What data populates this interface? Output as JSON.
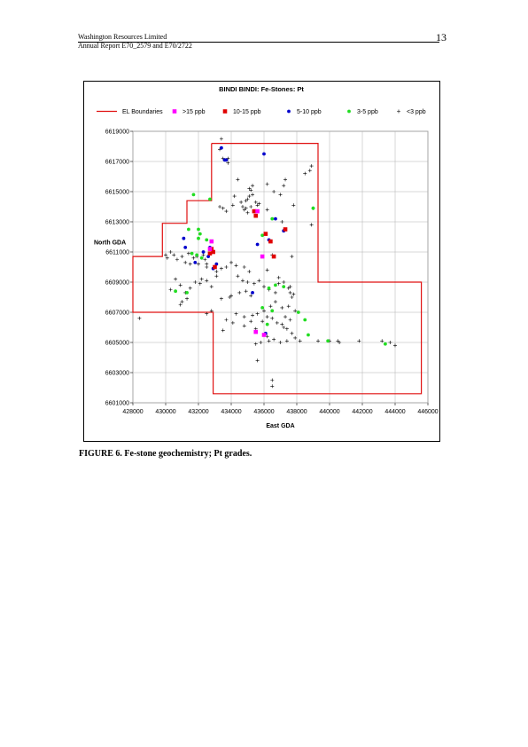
{
  "header": {
    "company": "Washington Resources Limited",
    "report": "Annual Report E70_2579 and E70/2722",
    "page_number": "13"
  },
  "caption": "FIGURE 6.  Fe-stone geochemistry; Pt grades.",
  "colors": {
    "boundary": "#e01010",
    "gt15": "#ff00ff",
    "10_15": "#e00000",
    "5_10": "#0000cc",
    "3_5": "#22dd22",
    "lt3": "#000000",
    "grid": "#b0b0b0"
  },
  "chart_data": {
    "type": "scatter",
    "title": "BINDI BINDI: Fe-Stones: Pt",
    "xlabel": "East GDA",
    "ylabel": "North GDA",
    "xlim": [
      428000,
      446000
    ],
    "ylim": [
      6601000,
      6619000
    ],
    "xticks": [
      "428000",
      "430000",
      "432000",
      "434000",
      "436000",
      "438000",
      "440000",
      "442000",
      "444000",
      "446000"
    ],
    "yticks": [
      "6601000",
      "6603000",
      "6605000",
      "6607000",
      "6609000",
      "6611000",
      "6613000",
      "6615000",
      "6617000",
      "6619000"
    ],
    "grid": true,
    "legend_position": "top",
    "legend": [
      "EL Boundaries",
      ">15 ppb",
      "10-15 ppb",
      "5-10 ppb",
      "3-5 ppb",
      "<3 ppb"
    ],
    "boundary": [
      [
        432800,
        6618200
      ],
      [
        439300,
        6618200
      ],
      [
        439300,
        6609000
      ],
      [
        445600,
        6609000
      ],
      [
        445600,
        6601600
      ],
      [
        432900,
        6601600
      ],
      [
        432900,
        6607000
      ],
      [
        428000,
        6607000
      ],
      [
        428000,
        6610700
      ],
      [
        429800,
        6610700
      ],
      [
        429800,
        6612900
      ],
      [
        431300,
        6612900
      ],
      [
        431300,
        6614400
      ],
      [
        432800,
        6614400
      ],
      [
        432800,
        6618200
      ]
    ],
    "series": [
      {
        "name": ">15 ppb",
        "marker": "square",
        "points": [
          [
            432800,
            6611700
          ],
          [
            435900,
            6610700
          ],
          [
            435600,
            6613700
          ],
          [
            436000,
            6605500
          ],
          [
            435500,
            6605700
          ],
          [
            432700,
            6611200
          ]
        ]
      },
      {
        "name": "10-15 ppb",
        "marker": "square",
        "points": [
          [
            432800,
            6611200
          ],
          [
            432700,
            6610900
          ],
          [
            433000,
            6610000
          ],
          [
            435500,
            6613400
          ],
          [
            436100,
            6612200
          ],
          [
            436400,
            6611700
          ],
          [
            436600,
            6610700
          ],
          [
            437300,
            6612500
          ],
          [
            435400,
            6613700
          ],
          [
            432900,
            6611000
          ]
        ]
      },
      {
        "name": "5-10 ppb",
        "marker": "circle",
        "points": [
          [
            433400,
            6617900
          ],
          [
            433600,
            6617100
          ],
          [
            433700,
            6617100
          ],
          [
            436000,
            6617500
          ],
          [
            435600,
            6611500
          ],
          [
            436300,
            6611800
          ],
          [
            437200,
            6612400
          ],
          [
            431100,
            6611900
          ],
          [
            431200,
            6611300
          ],
          [
            431800,
            6610300
          ],
          [
            432300,
            6611000
          ],
          [
            432600,
            6610700
          ],
          [
            433100,
            6610200
          ],
          [
            432900,
            6609900
          ],
          [
            435300,
            6608300
          ],
          [
            436100,
            6605600
          ],
          [
            432700,
            6611300
          ],
          [
            436700,
            6613200
          ]
        ]
      },
      {
        "name": "3-5 ppb",
        "marker": "circle",
        "points": [
          [
            431700,
            6614800
          ],
          [
            432700,
            6614500
          ],
          [
            431400,
            6612500
          ],
          [
            432000,
            6612500
          ],
          [
            432100,
            6612200
          ],
          [
            432000,
            6611900
          ],
          [
            431600,
            6610900
          ],
          [
            431900,
            6610800
          ],
          [
            432200,
            6610600
          ],
          [
            430600,
            6608400
          ],
          [
            431300,
            6608300
          ],
          [
            435900,
            6612100
          ],
          [
            436500,
            6613200
          ],
          [
            436700,
            6608800
          ],
          [
            436300,
            6608600
          ],
          [
            437200,
            6608700
          ],
          [
            435900,
            6607300
          ],
          [
            436500,
            6607100
          ],
          [
            438100,
            6607000
          ],
          [
            438500,
            6606500
          ],
          [
            438700,
            6605500
          ],
          [
            439900,
            6605100
          ],
          [
            443400,
            6604900
          ],
          [
            439000,
            6613900
          ],
          [
            436200,
            6606200
          ],
          [
            432500,
            6611800
          ]
        ]
      },
      {
        "name": "<3 ppb",
        "marker": "plus",
        "points": [
          [
            433400,
            6618500
          ],
          [
            433300,
            6617800
          ],
          [
            433500,
            6617200
          ],
          [
            433800,
            6617200
          ],
          [
            433300,
            6614000
          ],
          [
            433500,
            6613900
          ],
          [
            433700,
            6613700
          ],
          [
            434100,
            6614100
          ],
          [
            434200,
            6614700
          ],
          [
            434600,
            6614300
          ],
          [
            434700,
            6614000
          ],
          [
            434800,
            6613800
          ],
          [
            434900,
            6614400
          ],
          [
            435000,
            6614500
          ],
          [
            435100,
            6614700
          ],
          [
            435200,
            6615100
          ],
          [
            435300,
            6614800
          ],
          [
            435200,
            6614000
          ],
          [
            435500,
            6614300
          ],
          [
            435600,
            6614100
          ],
          [
            435000,
            6613600
          ],
          [
            434900,
            6613900
          ],
          [
            435300,
            6615400
          ],
          [
            435100,
            6615200
          ],
          [
            436200,
            6615500
          ],
          [
            436600,
            6615000
          ],
          [
            437000,
            6614800
          ],
          [
            437200,
            6615400
          ],
          [
            437300,
            6615800
          ],
          [
            437800,
            6614100
          ],
          [
            438500,
            6616200
          ],
          [
            438800,
            6616400
          ],
          [
            438900,
            6616700
          ],
          [
            439000,
            6613900
          ],
          [
            438900,
            6612800
          ],
          [
            437100,
            6613000
          ],
          [
            436200,
            6613800
          ],
          [
            430000,
            6610800
          ],
          [
            430100,
            6610600
          ],
          [
            430300,
            6611000
          ],
          [
            430700,
            6610500
          ],
          [
            431000,
            6610700
          ],
          [
            431400,
            6610900
          ],
          [
            431700,
            6610600
          ],
          [
            431900,
            6610700
          ],
          [
            432000,
            6610200
          ],
          [
            431500,
            6610200
          ],
          [
            431200,
            6610300
          ],
          [
            430500,
            6610800
          ],
          [
            432300,
            6610800
          ],
          [
            432400,
            6610500
          ],
          [
            432500,
            6610200
          ],
          [
            432200,
            6609200
          ],
          [
            432500,
            6609100
          ],
          [
            432800,
            6608700
          ],
          [
            433100,
            6609700
          ],
          [
            433400,
            6609900
          ],
          [
            433700,
            6610000
          ],
          [
            433100,
            6609400
          ],
          [
            430600,
            6609200
          ],
          [
            430300,
            6608500
          ],
          [
            430900,
            6608800
          ],
          [
            431200,
            6608300
          ],
          [
            431500,
            6608600
          ],
          [
            431800,
            6609000
          ],
          [
            432100,
            6608900
          ],
          [
            431300,
            6607900
          ],
          [
            431000,
            6607700
          ],
          [
            430900,
            6607500
          ],
          [
            434000,
            6610300
          ],
          [
            434300,
            6610100
          ],
          [
            434800,
            6610000
          ],
          [
            435100,
            6609700
          ],
          [
            434400,
            6609400
          ],
          [
            434700,
            6609100
          ],
          [
            435000,
            6609000
          ],
          [
            435400,
            6608900
          ],
          [
            435700,
            6609100
          ],
          [
            434000,
            6608100
          ],
          [
            434500,
            6608300
          ],
          [
            434900,
            6608400
          ],
          [
            435200,
            6608100
          ],
          [
            436000,
            6608700
          ],
          [
            436300,
            6608500
          ],
          [
            436700,
            6608300
          ],
          [
            436900,
            6608900
          ],
          [
            437200,
            6609000
          ],
          [
            437500,
            6608600
          ],
          [
            437600,
            6608300
          ],
          [
            437700,
            6608000
          ],
          [
            436700,
            6607700
          ],
          [
            436400,
            6607400
          ],
          [
            436000,
            6607100
          ],
          [
            437100,
            6607300
          ],
          [
            437500,
            6607400
          ],
          [
            437900,
            6607100
          ],
          [
            437300,
            6606700
          ],
          [
            437600,
            6606500
          ],
          [
            434300,
            6606900
          ],
          [
            434800,
            6606700
          ],
          [
            435300,
            6606800
          ],
          [
            435600,
            6606900
          ],
          [
            435900,
            6606400
          ],
          [
            436200,
            6606700
          ],
          [
            436500,
            6606600
          ],
          [
            436800,
            6606300
          ],
          [
            437100,
            6606200
          ],
          [
            437400,
            6605900
          ],
          [
            437700,
            6605600
          ],
          [
            437900,
            6605300
          ],
          [
            438200,
            6605100
          ],
          [
            437400,
            6605100
          ],
          [
            437000,
            6605000
          ],
          [
            436600,
            6605200
          ],
          [
            436200,
            6605400
          ],
          [
            435800,
            6605000
          ],
          [
            435500,
            6605900
          ],
          [
            435200,
            6606400
          ],
          [
            434800,
            6606100
          ],
          [
            434100,
            6606300
          ],
          [
            433700,
            6606500
          ],
          [
            433500,
            6605800
          ],
          [
            432500,
            6606900
          ],
          [
            432800,
            6607100
          ],
          [
            436900,
            6609300
          ],
          [
            436200,
            6609800
          ],
          [
            437700,
            6610700
          ],
          [
            436500,
            6610800
          ],
          [
            435500,
            6604900
          ],
          [
            435600,
            6603800
          ],
          [
            436500,
            6602500
          ],
          [
            436500,
            6602100
          ],
          [
            436300,
            6605100
          ],
          [
            437200,
            6606000
          ],
          [
            437600,
            6608700
          ],
          [
            437800,
            6608200
          ],
          [
            439300,
            6605100
          ],
          [
            440000,
            6605100
          ],
          [
            440500,
            6605100
          ],
          [
            440600,
            6605000
          ],
          [
            441800,
            6605100
          ],
          [
            443200,
            6605100
          ],
          [
            443700,
            6605000
          ],
          [
            444000,
            6604800
          ],
          [
            428400,
            6606600
          ],
          [
            433900,
            6608000
          ],
          [
            433400,
            6607900
          ],
          [
            433800,
            6616900
          ],
          [
            434400,
            6615800
          ],
          [
            435700,
            6614200
          ],
          [
            432500,
            6610000
          ]
        ]
      }
    ]
  }
}
